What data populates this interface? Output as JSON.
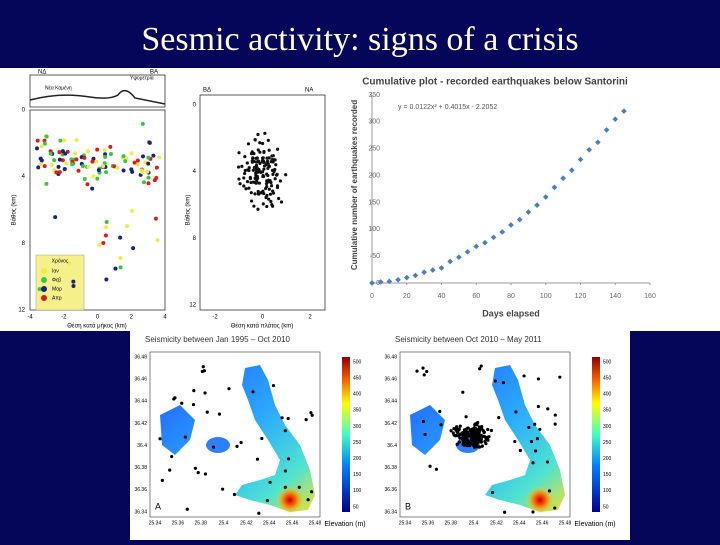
{
  "title": "Sesmic activity: signs of a crisis",
  "cross_section_1": {
    "left_label": "ΝΔ",
    "right_label": "ΒΑ",
    "top_label": "Υψομετρία",
    "place_label": "Νέα Καμένη",
    "ylabel": "Βάθος (km)",
    "xlabel": "Θέση κατά μήκος (km)",
    "yticks": [
      0,
      4,
      8,
      12
    ],
    "xticks": [
      -4,
      -2,
      0,
      2,
      4
    ],
    "legend_title": "Χρόνος",
    "legend": [
      {
        "name": "Ιαν",
        "color": "#f2e94e"
      },
      {
        "name": "Φεβ",
        "color": "#3fc43f"
      },
      {
        "name": "Μαρ",
        "color": "#1a237e"
      },
      {
        "name": "Απρ",
        "color": "#d62020"
      }
    ]
  },
  "cross_section_2": {
    "left_label": "ΒΔ",
    "right_label": "ΝΑ",
    "ylabel": "Βάθος (km)",
    "xlabel": "Θέση κατά πλάτος (km)",
    "yticks": [
      0,
      4,
      8,
      12
    ],
    "xticks": [
      -2,
      0,
      2
    ]
  },
  "chart_data": {
    "type": "scatter",
    "title": "Cumulative plot - recorded earthquakes below Santorini",
    "annotation": "y = 0.0122x² + 0.4015x - 2.2052",
    "x_label": "Days elapsed",
    "y_label": "Cumulative number of earthquakes recorded",
    "x": [
      0,
      5,
      10,
      15,
      20,
      25,
      30,
      35,
      40,
      45,
      50,
      55,
      60,
      65,
      70,
      75,
      80,
      85,
      90,
      95,
      100,
      105,
      110,
      115,
      120,
      125,
      130,
      135,
      140,
      145
    ],
    "values": [
      0,
      2,
      3,
      6,
      10,
      14,
      20,
      24,
      28,
      40,
      48,
      58,
      68,
      75,
      85,
      95,
      108,
      118,
      132,
      145,
      160,
      178,
      195,
      210,
      230,
      248,
      262,
      285,
      305,
      320
    ],
    "color": "#4a7fc1",
    "xlim": [
      0,
      160
    ],
    "ylim": [
      0,
      350
    ],
    "xticks": [
      0,
      20,
      40,
      60,
      80,
      100,
      120,
      140,
      160
    ],
    "yticks": [
      0,
      50,
      100,
      150,
      200,
      250,
      300,
      350
    ],
    "grid": false
  },
  "maps": [
    {
      "title": "Seismicity between Jan 1995 – Oct 2010",
      "letter": "A"
    },
    {
      "title": "Seismicity between Oct 2010 – May 2011",
      "letter": "B"
    }
  ],
  "colorbar_label": "Elevation (m)",
  "colorbar_ticks": [
    50,
    100,
    150,
    200,
    250,
    300,
    350,
    400,
    450,
    500
  ],
  "lat_ticks": [
    36.48,
    36.46,
    36.44,
    36.42,
    36.4,
    36.38,
    36.36,
    36.34
  ],
  "lon_ticks": [
    25.34,
    25.36,
    25.38,
    25.4,
    25.42,
    25.44,
    25.46,
    25.48
  ]
}
